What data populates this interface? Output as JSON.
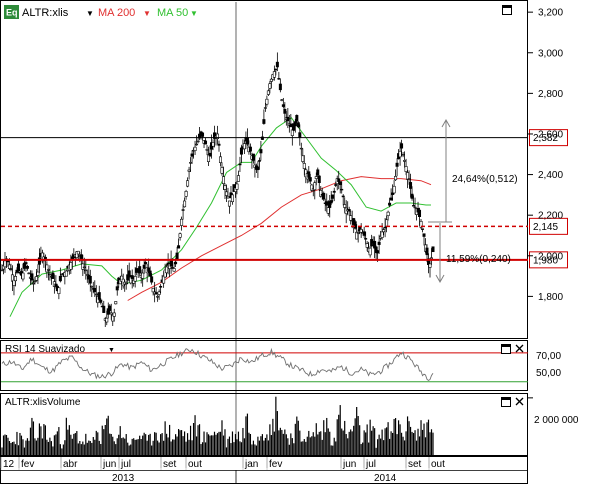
{
  "header": {
    "logo_text": "Eq",
    "symbol": "ALTR:xlis",
    "ma200_label": "MA 200",
    "ma50_label": "MA 50"
  },
  "colors": {
    "candle": "#000000",
    "ma200": "#e03030",
    "ma50": "#30c030",
    "level_line": "#d00000",
    "label_border": "#d00000",
    "arrow": "#808080",
    "rsi_line": "#707070",
    "rsi_green": "#30a030",
    "volume": "#000000",
    "grid": "#a0a0a0"
  },
  "rsi_panel": {
    "title": "RSI 14 Suavizado",
    "level_70": "70,00",
    "level_50": "50,00"
  },
  "volume_panel": {
    "title": "ALTR:xlisVolume",
    "tick": "2 000 000"
  },
  "annotations": {
    "up_move": "24,64%(0,512)",
    "down_move": "11,59%(0,240)"
  },
  "chart_data": {
    "type": "candlestick",
    "y_ticks": [
      "3,200",
      "3,000",
      "2,800",
      "2,600",
      "2,400",
      "2,200",
      "2,000",
      "1,800"
    ],
    "ylim": [
      1.6,
      3.25
    ],
    "x_labels": [
      "12",
      "fev",
      "abr",
      "jun",
      "jul",
      "set",
      "out",
      "jan",
      "fev",
      "jun",
      "jul",
      "set",
      "out"
    ],
    "year_labels": [
      "2013",
      "2014"
    ],
    "levels": [
      {
        "value": 2.582,
        "label": "2,582",
        "style": "solid-black"
      },
      {
        "value": 2.145,
        "label": "2,145",
        "style": "dashed-red"
      },
      {
        "value": 1.98,
        "label": "1,980",
        "style": "solid-red"
      }
    ],
    "close_path": [
      [
        0,
        1.93
      ],
      [
        4,
        1.99
      ],
      [
        8,
        1.95
      ],
      [
        12,
        1.88
      ],
      [
        16,
        1.93
      ],
      [
        20,
        1.9
      ],
      [
        24,
        1.96
      ],
      [
        28,
        1.9
      ],
      [
        32,
        1.86
      ],
      [
        36,
        1.92
      ],
      [
        40,
        2.02
      ],
      [
        44,
        1.97
      ],
      [
        48,
        1.91
      ],
      [
        52,
        1.88
      ],
      [
        56,
        1.82
      ],
      [
        60,
        1.91
      ],
      [
        64,
        1.92
      ],
      [
        68,
        1.96
      ],
      [
        72,
        1.99
      ],
      [
        76,
        2.03
      ],
      [
        80,
        1.97
      ],
      [
        84,
        1.93
      ],
      [
        88,
        1.87
      ],
      [
        92,
        1.83
      ],
      [
        96,
        1.8
      ],
      [
        100,
        1.76
      ],
      [
        104,
        1.68
      ],
      [
        108,
        1.73
      ],
      [
        112,
        1.7
      ],
      [
        116,
        1.85
      ],
      [
        120,
        1.9
      ],
      [
        124,
        1.86
      ],
      [
        128,
        1.9
      ],
      [
        132,
        1.88
      ],
      [
        136,
        1.93
      ],
      [
        140,
        1.9
      ],
      [
        144,
        1.96
      ],
      [
        148,
        1.91
      ],
      [
        152,
        1.83
      ],
      [
        156,
        1.8
      ],
      [
        160,
        1.86
      ],
      [
        164,
        1.94
      ],
      [
        168,
        1.96
      ],
      [
        172,
        1.93
      ],
      [
        176,
        1.99
      ],
      [
        180,
        2.18
      ],
      [
        184,
        2.3
      ],
      [
        188,
        2.44
      ],
      [
        192,
        2.52
      ],
      [
        196,
        2.56
      ],
      [
        200,
        2.6
      ],
      [
        204,
        2.55
      ],
      [
        208,
        2.48
      ],
      [
        212,
        2.57
      ],
      [
        216,
        2.6
      ],
      [
        220,
        2.45
      ],
      [
        224,
        2.33
      ],
      [
        228,
        2.27
      ],
      [
        232,
        2.31
      ],
      [
        236,
        2.36
      ],
      [
        240,
        2.5
      ],
      [
        244,
        2.57
      ],
      [
        248,
        2.53
      ],
      [
        252,
        2.47
      ],
      [
        256,
        2.41
      ],
      [
        260,
        2.52
      ],
      [
        264,
        2.73
      ],
      [
        268,
        2.84
      ],
      [
        272,
        2.9
      ],
      [
        276,
        2.93
      ],
      [
        280,
        2.78
      ],
      [
        284,
        2.69
      ],
      [
        288,
        2.65
      ],
      [
        292,
        2.61
      ],
      [
        296,
        2.67
      ],
      [
        300,
        2.53
      ],
      [
        304,
        2.43
      ],
      [
        308,
        2.38
      ],
      [
        312,
        2.33
      ],
      [
        316,
        2.41
      ],
      [
        320,
        2.31
      ],
      [
        324,
        2.26
      ],
      [
        328,
        2.23
      ],
      [
        332,
        2.29
      ],
      [
        336,
        2.38
      ],
      [
        340,
        2.34
      ],
      [
        344,
        2.24
      ],
      [
        348,
        2.22
      ],
      [
        352,
        2.16
      ],
      [
        356,
        2.11
      ],
      [
        360,
        2.13
      ],
      [
        364,
        2.09
      ],
      [
        368,
        2.03
      ],
      [
        372,
        2.06
      ],
      [
        376,
        2.0
      ],
      [
        380,
        2.11
      ],
      [
        384,
        2.14
      ],
      [
        388,
        2.24
      ],
      [
        392,
        2.31
      ],
      [
        396,
        2.44
      ],
      [
        400,
        2.54
      ],
      [
        404,
        2.46
      ],
      [
        408,
        2.38
      ],
      [
        412,
        2.25
      ],
      [
        416,
        2.23
      ],
      [
        420,
        2.17
      ],
      [
        424,
        2.07
      ],
      [
        428,
        1.94
      ],
      [
        432,
        2.02
      ]
    ],
    "ma200": [
      [
        126,
        1.78
      ],
      [
        140,
        1.82
      ],
      [
        160,
        1.87
      ],
      [
        180,
        1.94
      ],
      [
        200,
        2.0
      ],
      [
        220,
        2.05
      ],
      [
        240,
        2.1
      ],
      [
        260,
        2.16
      ],
      [
        280,
        2.24
      ],
      [
        300,
        2.3
      ],
      [
        320,
        2.33
      ],
      [
        340,
        2.37
      ],
      [
        360,
        2.39
      ],
      [
        380,
        2.38
      ],
      [
        400,
        2.38
      ],
      [
        420,
        2.37
      ],
      [
        430,
        2.35
      ]
    ],
    "ma50": [
      [
        8,
        1.7
      ],
      [
        20,
        1.82
      ],
      [
        40,
        1.91
      ],
      [
        60,
        1.93
      ],
      [
        80,
        1.96
      ],
      [
        100,
        1.95
      ],
      [
        110,
        1.9
      ],
      [
        120,
        1.86
      ],
      [
        140,
        1.88
      ],
      [
        160,
        1.93
      ],
      [
        180,
        2.03
      ],
      [
        195,
        2.14
      ],
      [
        210,
        2.26
      ],
      [
        225,
        2.41
      ],
      [
        240,
        2.46
      ],
      [
        250,
        2.46
      ],
      [
        260,
        2.54
      ],
      [
        275,
        2.63
      ],
      [
        290,
        2.68
      ],
      [
        305,
        2.58
      ],
      [
        320,
        2.48
      ],
      [
        335,
        2.42
      ],
      [
        350,
        2.35
      ],
      [
        365,
        2.24
      ],
      [
        380,
        2.22
      ],
      [
        395,
        2.26
      ],
      [
        410,
        2.26
      ],
      [
        425,
        2.25
      ],
      [
        430,
        2.25
      ]
    ],
    "rsi_ylim": [
      20,
      85
    ],
    "rsi": [
      [
        0,
        54
      ],
      [
        10,
        58
      ],
      [
        20,
        47
      ],
      [
        30,
        62
      ],
      [
        40,
        50
      ],
      [
        50,
        44
      ],
      [
        60,
        58
      ],
      [
        70,
        64
      ],
      [
        80,
        49
      ],
      [
        90,
        40
      ],
      [
        100,
        37
      ],
      [
        110,
        42
      ],
      [
        120,
        55
      ],
      [
        130,
        49
      ],
      [
        140,
        57
      ],
      [
        150,
        46
      ],
      [
        160,
        54
      ],
      [
        170,
        62
      ],
      [
        180,
        70
      ],
      [
        190,
        75
      ],
      [
        200,
        66
      ],
      [
        210,
        58
      ],
      [
        220,
        48
      ],
      [
        230,
        52
      ],
      [
        240,
        63
      ],
      [
        250,
        57
      ],
      [
        260,
        66
      ],
      [
        270,
        71
      ],
      [
        280,
        62
      ],
      [
        290,
        52
      ],
      [
        300,
        46
      ],
      [
        310,
        40
      ],
      [
        320,
        47
      ],
      [
        330,
        44
      ],
      [
        340,
        51
      ],
      [
        350,
        42
      ],
      [
        360,
        47
      ],
      [
        370,
        39
      ],
      [
        380,
        45
      ],
      [
        390,
        56
      ],
      [
        400,
        71
      ],
      [
        410,
        60
      ],
      [
        420,
        44
      ],
      [
        428,
        35
      ],
      [
        432,
        43
      ]
    ],
    "volume_scale_max": 2000000,
    "volume": [
      [
        0,
        420000
      ],
      [
        5,
        610000
      ],
      [
        10,
        350000
      ],
      [
        15,
        720000
      ],
      [
        20,
        480000
      ],
      [
        25,
        380000
      ],
      [
        30,
        900000
      ],
      [
        35,
        560000
      ],
      [
        40,
        1100000
      ],
      [
        45,
        640000
      ],
      [
        50,
        390000
      ],
      [
        55,
        820000
      ],
      [
        60,
        450000
      ],
      [
        65,
        980000
      ],
      [
        70,
        520000
      ],
      [
        75,
        700000
      ],
      [
        80,
        430000
      ],
      [
        85,
        560000
      ],
      [
        90,
        310000
      ],
      [
        95,
        780000
      ],
      [
        100,
        640000
      ],
      [
        105,
        1150000
      ],
      [
        110,
        480000
      ],
      [
        115,
        670000
      ],
      [
        120,
        820000
      ],
      [
        125,
        560000
      ],
      [
        130,
        390000
      ],
      [
        135,
        610000
      ],
      [
        140,
        720000
      ],
      [
        145,
        430000
      ],
      [
        150,
        560000
      ],
      [
        155,
        980000
      ],
      [
        160,
        480000
      ],
      [
        165,
        1090000
      ],
      [
        170,
        560000
      ],
      [
        175,
        680000
      ],
      [
        180,
        820000
      ],
      [
        185,
        600000
      ],
      [
        190,
        760000
      ],
      [
        195,
        1050000
      ],
      [
        200,
        690000
      ],
      [
        205,
        520000
      ],
      [
        210,
        930000
      ],
      [
        215,
        640000
      ],
      [
        220,
        1120000
      ],
      [
        225,
        470000
      ],
      [
        230,
        610000
      ],
      [
        235,
        790000
      ],
      [
        240,
        520000
      ],
      [
        245,
        1300000
      ],
      [
        250,
        720000
      ],
      [
        255,
        580000
      ],
      [
        260,
        870000
      ],
      [
        265,
        1080000
      ],
      [
        270,
        660000
      ],
      [
        275,
        1950000
      ],
      [
        280,
        890000
      ],
      [
        285,
        740000
      ],
      [
        290,
        600000
      ],
      [
        295,
        1010000
      ],
      [
        300,
        560000
      ],
      [
        305,
        780000
      ],
      [
        310,
        490000
      ],
      [
        315,
        920000
      ],
      [
        320,
        640000
      ],
      [
        325,
        1180000
      ],
      [
        330,
        520000
      ],
      [
        335,
        870000
      ],
      [
        340,
        1400000
      ],
      [
        345,
        610000
      ],
      [
        350,
        760000
      ],
      [
        355,
        1250000
      ],
      [
        360,
        560000
      ],
      [
        365,
        690000
      ],
      [
        370,
        1030000
      ],
      [
        375,
        480000
      ],
      [
        380,
        760000
      ],
      [
        385,
        900000
      ],
      [
        390,
        620000
      ],
      [
        395,
        1100000
      ],
      [
        400,
        840000
      ],
      [
        405,
        720000
      ],
      [
        410,
        1380000
      ],
      [
        415,
        600000
      ],
      [
        420,
        950000
      ],
      [
        425,
        1150000
      ],
      [
        430,
        700000
      ]
    ]
  }
}
